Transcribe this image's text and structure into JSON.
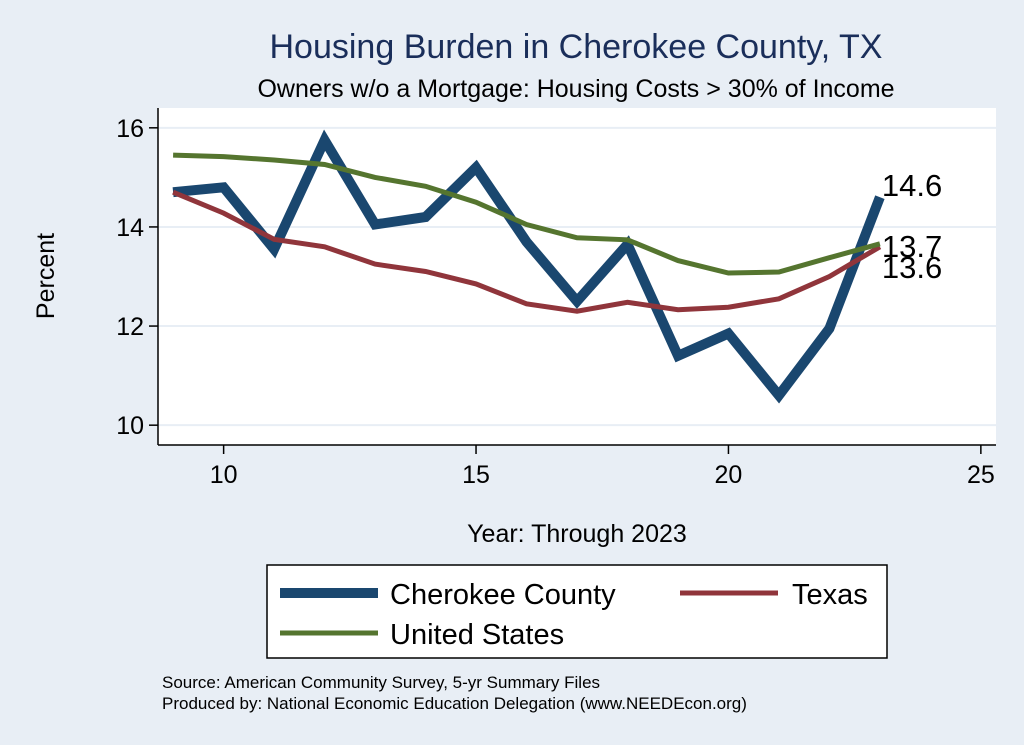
{
  "chart_data": {
    "type": "line",
    "title": "Housing Burden in Cherokee County, TX",
    "subtitle": "Owners w/o a Mortgage: Housing Costs > 30% of Income",
    "xlabel": "Year: Through 2023",
    "ylabel": "Percent",
    "xlim": [
      8.7,
      25.3
    ],
    "ylim": [
      9.6,
      16.4
    ],
    "x_ticks": [
      10,
      15,
      20,
      25
    ],
    "y_ticks": [
      10,
      12,
      14,
      16
    ],
    "x": [
      9,
      10,
      11,
      12,
      13,
      14,
      15,
      16,
      17,
      18,
      19,
      20,
      21,
      22,
      23
    ],
    "series": [
      {
        "name": "Cherokee County",
        "color": "#1a476f",
        "values": [
          14.7,
          14.8,
          13.55,
          15.75,
          14.05,
          14.2,
          15.2,
          13.7,
          12.5,
          13.65,
          11.4,
          11.85,
          10.6,
          11.95,
          14.6
        ],
        "end_label": "14.6"
      },
      {
        "name": "Texas",
        "color": "#90353b",
        "values": [
          14.7,
          14.28,
          13.75,
          13.6,
          13.25,
          13.1,
          12.85,
          12.45,
          12.3,
          12.48,
          12.33,
          12.38,
          12.55,
          13.0,
          13.6
        ],
        "end_label": "13.6"
      },
      {
        "name": "United States",
        "color": "#55752f",
        "values": [
          15.45,
          15.42,
          15.35,
          15.26,
          15.0,
          14.82,
          14.5,
          14.05,
          13.78,
          13.74,
          13.32,
          13.07,
          13.09,
          13.38,
          13.66
        ],
        "end_label": "13.7"
      }
    ],
    "legend_position": "bottom"
  },
  "source_line1": "Source: American Community Survey, 5-yr Summary Files",
  "source_line2": "Produced by: National Economic Education Delegation (www.NEEDEcon.org)"
}
